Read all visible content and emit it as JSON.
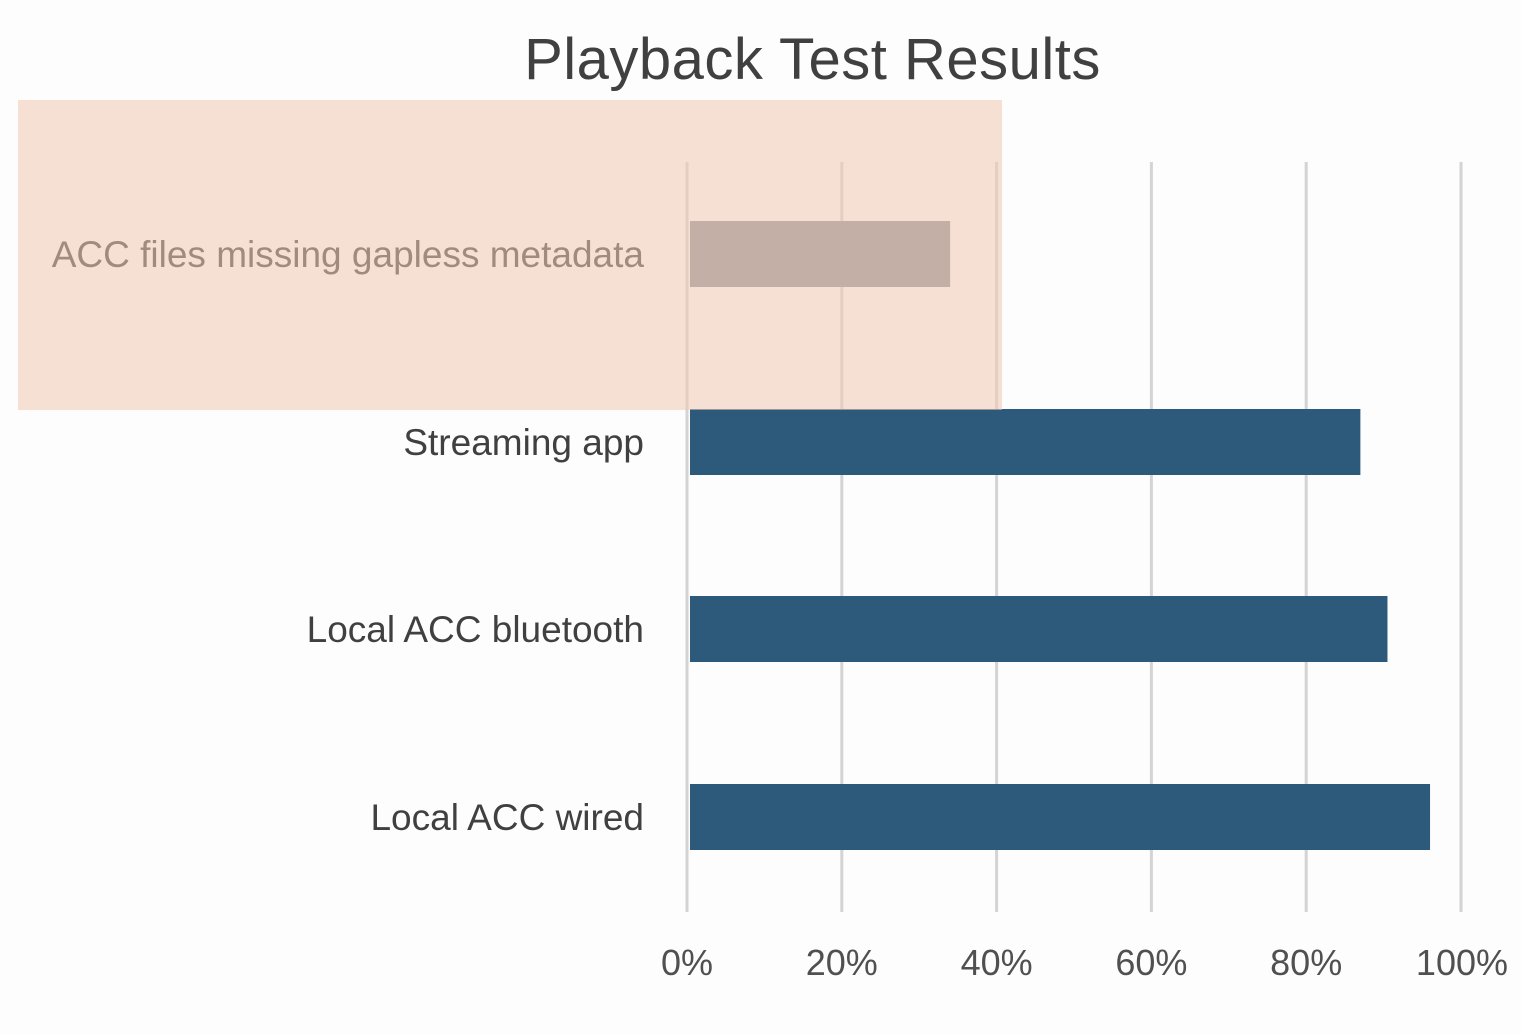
{
  "chart_data": {
    "type": "bar",
    "orientation": "horizontal",
    "title": "Playback Test Results",
    "categories": [
      "ACC files missing gapless metadata",
      "Streaming app",
      "Local ACC bluetooth",
      "Local ACC wired"
    ],
    "values": [
      0.34,
      0.87,
      0.905,
      0.96
    ],
    "bar_colors": [
      "#8c9094",
      "#2d5a7b",
      "#2d5a7b",
      "#2d5a7b"
    ],
    "xlim": [
      0,
      1
    ],
    "x_ticks": [
      0,
      0.2,
      0.4,
      0.6,
      0.8,
      1.0
    ],
    "x_tick_labels": [
      "0%",
      "20%",
      "40%",
      "60%",
      "80%",
      "100%"
    ],
    "xlabel": "",
    "ylabel": "",
    "grid": "vertical",
    "legend": "none",
    "highlight": {
      "category": "ACC files missing gapless metadata",
      "color": "#f0c8b2"
    }
  }
}
